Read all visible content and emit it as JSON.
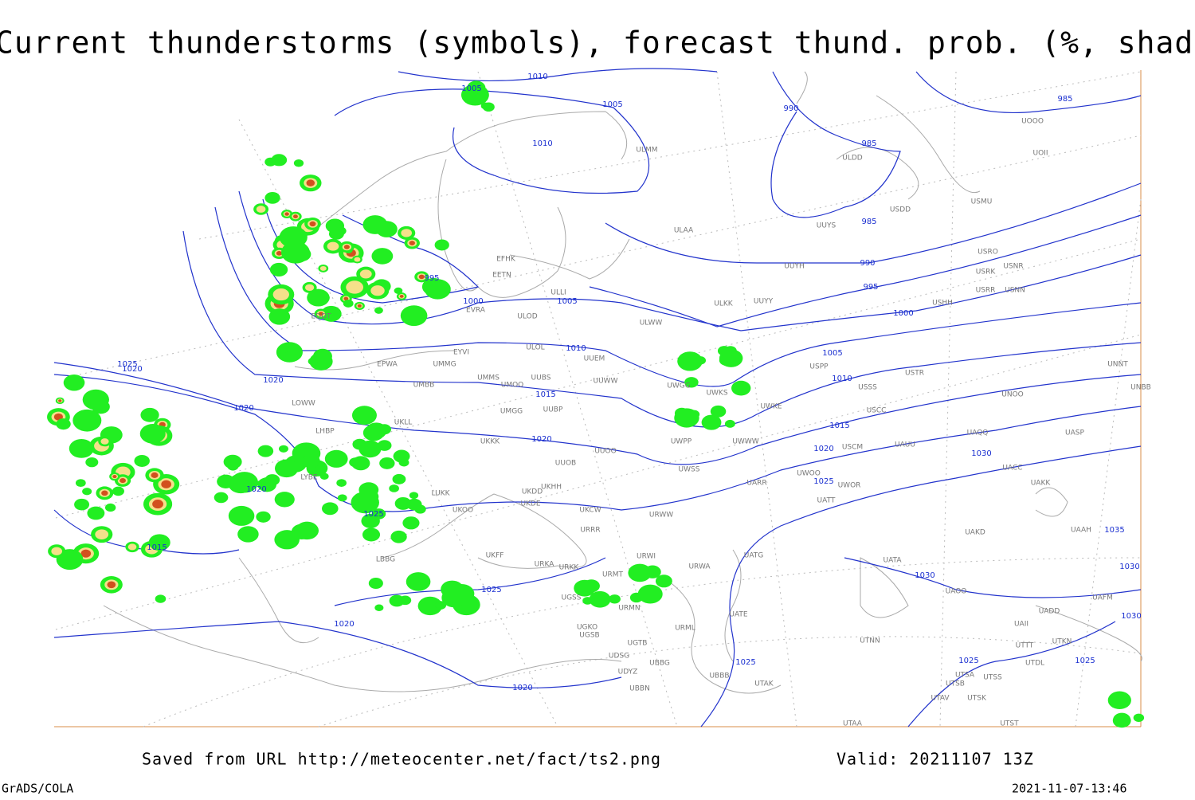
{
  "header": {
    "title": "Current thunderstorms (symbols), forecast thund. prob. (%, shaded)"
  },
  "map": {
    "isobar_labels": [
      "1010",
      "1005",
      "1005",
      "1010",
      "990",
      "985",
      "985",
      "985",
      "990",
      "995",
      "1000",
      "1005",
      "1010",
      "1015",
      "1020",
      "1025",
      "1030",
      "1035",
      "1030",
      "1030",
      "1030",
      "1025",
      "1025",
      "1025",
      "1020",
      "1020",
      "1025",
      "1025",
      "1020",
      "1015",
      "1020",
      "1020",
      "1025",
      "1020",
      "995",
      "1000",
      "1005",
      "1010",
      "1015",
      "1020"
    ],
    "station_labels": [
      "ULAA",
      "UUYS",
      "UUYH",
      "ULKK",
      "UUYY",
      "ULWW",
      "EFHK",
      "EETN",
      "ULLI",
      "ULOD",
      "EVRA",
      "EYVI",
      "ULOL",
      "UUEM",
      "EPWA",
      "UMMG",
      "UMMS",
      "UMOO",
      "UUBS",
      "UUWW",
      "UMGG",
      "UUBP",
      "UKLL",
      "UKKK",
      "UUOO",
      "UUOB",
      "UKHH",
      "UKOO",
      "UKCW",
      "UKFF",
      "URKA",
      "URKK",
      "URRR",
      "URWI",
      "URMT",
      "URMN",
      "UGSS",
      "UGKO",
      "UGSB",
      "UDSG",
      "UBBG",
      "UBBN",
      "URML",
      "URWA",
      "UATG",
      "UATE",
      "UATT",
      "UWOO",
      "UWOR",
      "USCM",
      "UAUU",
      "USCC",
      "USSS",
      "USTR",
      "USPP",
      "UWKE",
      "UWKS",
      "UWGG",
      "UWPP",
      "UWWW",
      "UWSS",
      "URWW",
      "UARR",
      "UAKD",
      "UATA",
      "UAOO",
      "UTNN",
      "UTSA",
      "UTSS",
      "UTSB",
      "UTAK",
      "UBBB",
      "UTAA",
      "UAKK",
      "UACC",
      "UAQQ",
      "UASP",
      "UNOO",
      "UNNT",
      "UNBB",
      "USMU",
      "USDD",
      "ULDD",
      "UOOO",
      "UOII",
      "USRR",
      "USNN",
      "USRK",
      "USNR",
      "USRO",
      "USHH",
      "ULMM",
      "LBBG",
      "LHBP",
      "LOWW",
      "LYBE",
      "EDDT",
      "UMBB",
      "LUKK",
      "UKDD",
      "UKDE",
      "UAAH",
      "UAFM",
      "UADD",
      "UAII",
      "UTTT",
      "UTDL",
      "UTKN",
      "UTSK",
      "UTAV",
      "UTST",
      "UGTB",
      "UDYZ"
    ]
  },
  "footer": {
    "source": "Saved from URL http://meteocenter.net/fact/ts2.png",
    "valid": "Valid: 20211107 13Z",
    "software": "GrADS/COLA",
    "timestamp": "2021-11-07-13:46"
  }
}
